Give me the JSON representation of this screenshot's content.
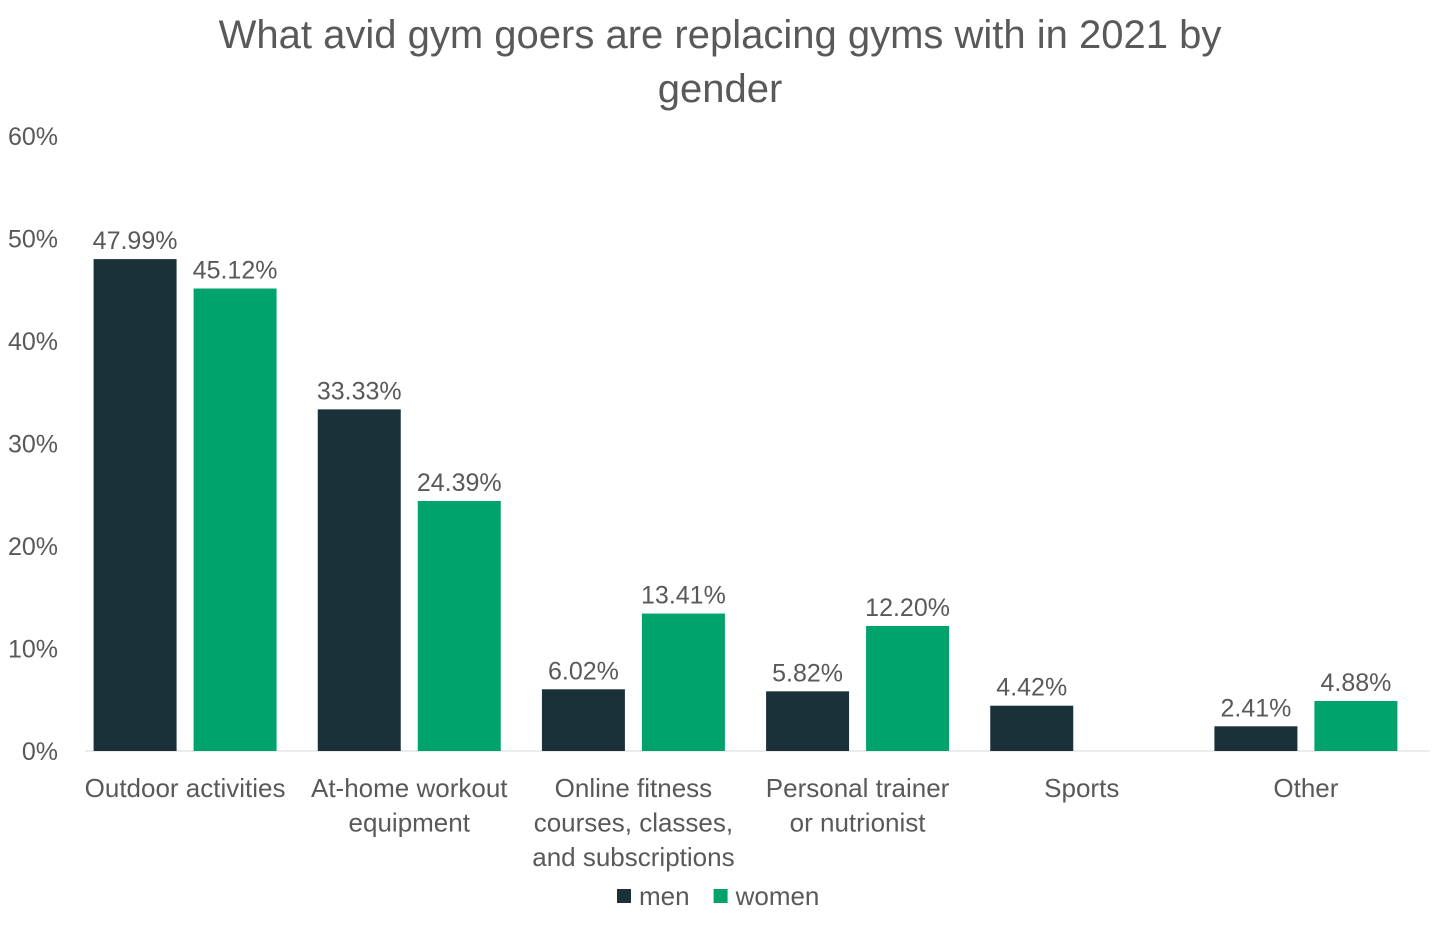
{
  "chart_data": {
    "type": "bar",
    "title": "What avid gym goers are replacing gyms with in 2021 by gender",
    "title_lines": [
      "What avid gym goers are replacing gyms with in 2021 by",
      "gender"
    ],
    "categories": [
      [
        "Outdoor activities"
      ],
      [
        "At-home workout",
        "equipment"
      ],
      [
        "Online fitness",
        "courses, classes,",
        "and subscriptions"
      ],
      [
        "Personal trainer",
        "or nutrionist"
      ],
      [
        "Sports"
      ],
      [
        "Other"
      ]
    ],
    "series": [
      {
        "name": "men",
        "color": "#1b3139",
        "values": [
          47.99,
          33.33,
          6.02,
          5.82,
          4.42,
          2.41
        ],
        "labels": [
          "47.99%",
          "33.33%",
          "6.02%",
          "5.82%",
          "4.42%",
          "2.41%"
        ]
      },
      {
        "name": "women",
        "color": "#00a36c",
        "values": [
          45.12,
          24.39,
          13.41,
          12.2,
          null,
          4.88
        ],
        "labels": [
          "45.12%",
          "24.39%",
          "13.41%",
          "12.20%",
          null,
          "4.88%"
        ]
      }
    ],
    "ylim": [
      0,
      60
    ],
    "yticks": [
      "0%",
      "10%",
      "20%",
      "30%",
      "40%",
      "50%",
      "60%"
    ],
    "grid": false,
    "legend": "bottom"
  }
}
